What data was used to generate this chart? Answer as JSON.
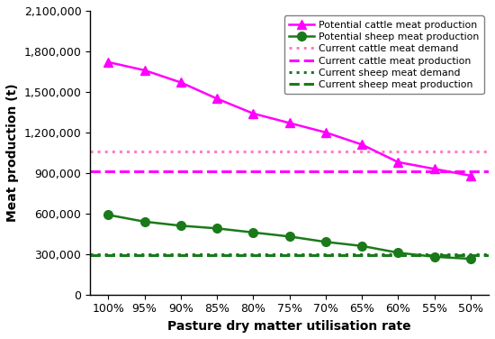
{
  "x_labels": [
    "100%",
    "95%",
    "90%",
    "85%",
    "80%",
    "75%",
    "70%",
    "65%",
    "60%",
    "55%",
    "50%"
  ],
  "cattle_potential": [
    1720000,
    1660000,
    1570000,
    1450000,
    1340000,
    1270000,
    1200000,
    1110000,
    980000,
    930000,
    880000
  ],
  "sheep_potential": [
    590000,
    540000,
    510000,
    490000,
    460000,
    430000,
    390000,
    360000,
    310000,
    280000,
    265000
  ],
  "cattle_demand_line": 1060000,
  "cattle_production_line": 910000,
  "sheep_demand_line": 302000,
  "sheep_production_line": 290000,
  "cattle_color": "#FF00FF",
  "sheep_color": "#1a7a1a",
  "pink_dotted_color": "#FF80C0",
  "pink_dashed_color": "#FF00FF",
  "green_dotted_color": "#1a7a1a",
  "green_dashed_color": "#1a7a1a",
  "ylabel": "Meat production (t)",
  "xlabel": "Pasture dry matter utilisation rate",
  "ylim": [
    0,
    2100000
  ],
  "yticks": [
    0,
    300000,
    600000,
    900000,
    1200000,
    1500000,
    1800000,
    2100000
  ],
  "legend_entries": [
    "Potential cattle meat production",
    "Potential sheep meat production",
    "Current cattle meat demand",
    "Current cattle meat production",
    "Current sheep meat demand",
    "Current sheep meat production"
  ]
}
